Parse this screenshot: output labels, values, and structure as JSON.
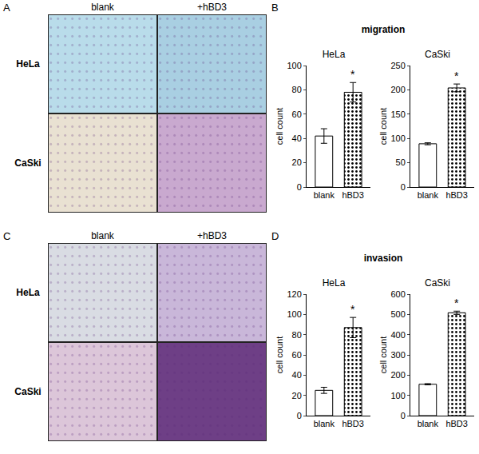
{
  "figure": {
    "image_panels": [
      {
        "letter": "A",
        "columns": [
          "blank",
          "+hBD3"
        ],
        "rows": [
          "HeLa",
          "CaSki"
        ]
      },
      {
        "letter": "C",
        "columns": [
          "blank",
          "+hBD3"
        ],
        "rows": [
          "HeLa",
          "CaSki"
        ]
      }
    ],
    "chart_groups": [
      {
        "letter": "B",
        "title": "migration"
      },
      {
        "letter": "D",
        "title": "invasion"
      }
    ]
  },
  "chart_data": [
    {
      "type": "bar",
      "title": "HeLa",
      "y_label": "cell count",
      "categories": [
        "blank",
        "hBD3"
      ],
      "values": [
        42,
        78
      ],
      "errors": [
        6,
        8
      ],
      "colors": [
        "#ffffff",
        "#000000"
      ],
      "ylim": [
        0,
        100
      ],
      "yticks": [
        0,
        20,
        40,
        60,
        80,
        100
      ],
      "grid": false,
      "annotations": [
        {
          "category": "hBD3",
          "text": "*"
        }
      ]
    },
    {
      "type": "bar",
      "title": "CaSki",
      "y_label": "cell count",
      "categories": [
        "blank",
        "hBD3"
      ],
      "values": [
        89,
        204
      ],
      "errors": [
        2,
        8
      ],
      "colors": [
        "#ffffff",
        "#000000"
      ],
      "ylim": [
        0,
        250
      ],
      "yticks": [
        0,
        50,
        100,
        150,
        200,
        250
      ],
      "grid": false,
      "annotations": [
        {
          "category": "hBD3",
          "text": "*"
        }
      ]
    },
    {
      "type": "bar",
      "title": "HeLa",
      "y_label": "cell count",
      "categories": [
        "blank",
        "hBD3"
      ],
      "values": [
        25,
        87
      ],
      "errors": [
        3,
        10
      ],
      "colors": [
        "#ffffff",
        "#000000"
      ],
      "ylim": [
        0,
        120
      ],
      "yticks": [
        0,
        20,
        40,
        60,
        80,
        100,
        120
      ],
      "grid": false,
      "annotations": [
        {
          "category": "hBD3",
          "text": "*"
        }
      ]
    },
    {
      "type": "bar",
      "title": "CaSki",
      "y_label": "cell count",
      "categories": [
        "blank",
        "hBD3"
      ],
      "values": [
        155,
        508
      ],
      "errors": [
        3,
        8
      ],
      "colors": [
        "#ffffff",
        "#000000"
      ],
      "ylim": [
        0,
        600
      ],
      "yticks": [
        0,
        100,
        200,
        300,
        400,
        500,
        600
      ],
      "grid": false,
      "annotations": [
        {
          "category": "hBD3",
          "text": "*"
        }
      ]
    }
  ]
}
